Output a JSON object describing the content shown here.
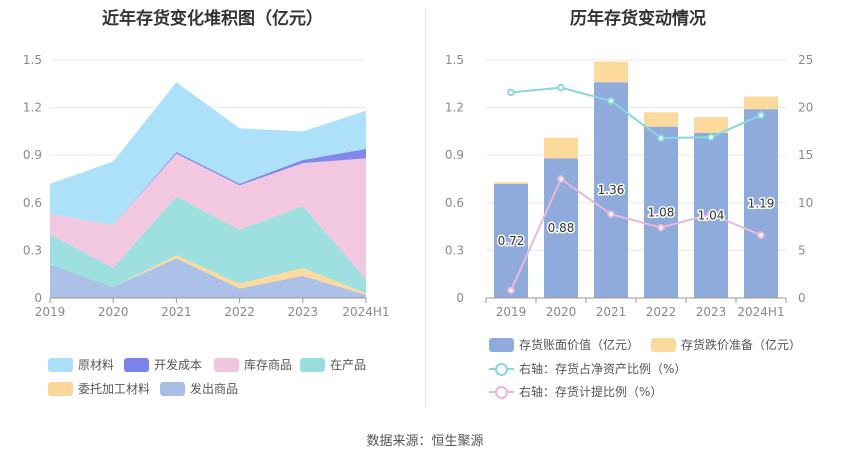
{
  "source_label": "数据来源：恒生聚源",
  "chart_data": [
    {
      "type": "area",
      "stacked": true,
      "title": "近年存货变化堆积图（亿元）",
      "categories": [
        "2019",
        "2020",
        "2021",
        "2022",
        "2023",
        "2024H1"
      ],
      "ylim": [
        0,
        1.5
      ],
      "yticks": [
        "0",
        "0.3",
        "0.6",
        "0.9",
        "1.2",
        "1.5"
      ],
      "grid": true,
      "legend_position": "bottom",
      "stack_order_bottom_to_top": [
        "发出商品",
        "委托加工材料",
        "在产品",
        "库存商品",
        "开发成本",
        "原材料"
      ],
      "series": [
        {
          "name": "原材料",
          "color": "#a9dff9",
          "values": [
            0.19,
            0.4,
            0.44,
            0.35,
            0.18,
            0.24
          ]
        },
        {
          "name": "开发成本",
          "color": "#7b82ea",
          "values": [
            0.0,
            0.0,
            0.01,
            0.01,
            0.02,
            0.06
          ]
        },
        {
          "name": "库存商品",
          "color": "#f0c5de",
          "values": [
            0.13,
            0.27,
            0.27,
            0.28,
            0.27,
            0.76
          ]
        },
        {
          "name": "在产品",
          "color": "#99dede",
          "values": [
            0.19,
            0.12,
            0.37,
            0.34,
            0.39,
            0.09
          ]
        },
        {
          "name": "委托加工材料",
          "color": "#fbd79a",
          "values": [
            0.0,
            0.0,
            0.02,
            0.03,
            0.05,
            0.01
          ]
        },
        {
          "name": "发出商品",
          "color": "#a8bee6",
          "values": [
            0.21,
            0.07,
            0.25,
            0.06,
            0.14,
            0.02
          ]
        }
      ]
    },
    {
      "type": "bar",
      "title": "历年存货变动情况",
      "categories": [
        "2019",
        "2020",
        "2021",
        "2022",
        "2023",
        "2024H1"
      ],
      "ylim": [
        0,
        1.5
      ],
      "yticks": [
        "0",
        "0.3",
        "0.6",
        "0.9",
        "1.2",
        "1.5"
      ],
      "y2lim": [
        0,
        25
      ],
      "y2ticks": [
        "0",
        "5",
        "10",
        "15",
        "20",
        "25"
      ],
      "grid": true,
      "legend_position": "bottom",
      "bar_series": [
        {
          "name": "存货账面价值（亿元）",
          "color": "#8eabdb",
          "values": [
            0.72,
            0.88,
            1.36,
            1.08,
            1.04,
            1.19
          ],
          "labels": [
            "0.72",
            "0.88",
            "1.36",
            "1.08",
            "1.04",
            "1.19"
          ]
        },
        {
          "name": "存货跌价准备（亿元）",
          "color": "#fcd99c",
          "values": [
            0.01,
            0.13,
            0.13,
            0.09,
            0.1,
            0.08
          ]
        }
      ],
      "line_series": [
        {
          "name": "右轴：存货占净资产比例（%）",
          "color": "#87d8dc",
          "values": [
            21.6,
            22.1,
            20.7,
            16.8,
            16.9,
            19.2
          ]
        },
        {
          "name": "右轴：存货计提比例（%）",
          "color": "#eab6dc",
          "values": [
            0.8,
            12.5,
            8.8,
            7.4,
            8.8,
            6.6
          ]
        }
      ]
    }
  ]
}
